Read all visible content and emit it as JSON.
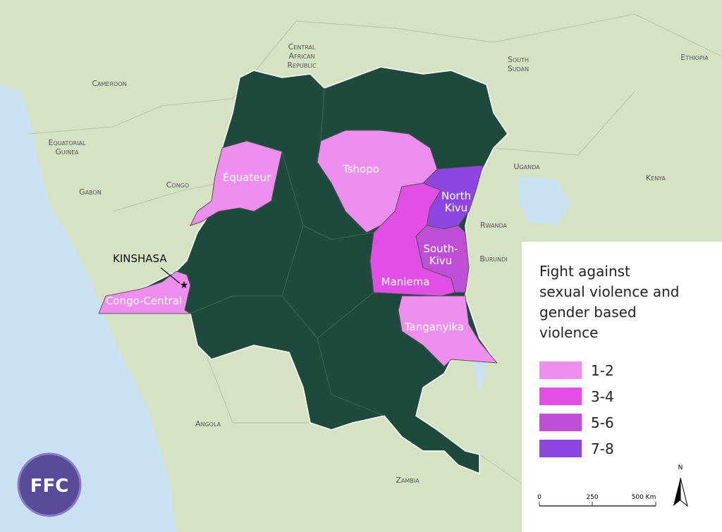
{
  "countries": [
    {
      "lines": [
        "Central",
        "African",
        "Republic"
      ]
    },
    {
      "lines": [
        "South",
        "Sudan"
      ]
    },
    {
      "lines": [
        "Ethiopia"
      ]
    },
    {
      "lines": [
        "Cameroon"
      ]
    },
    {
      "lines": [
        "Equatorial",
        "Guinea"
      ]
    },
    {
      "lines": [
        "Gabon"
      ]
    },
    {
      "lines": [
        "Congo"
      ]
    },
    {
      "lines": [
        "Uganda"
      ]
    },
    {
      "lines": [
        "Kenya"
      ]
    },
    {
      "lines": [
        "Rwanda"
      ]
    },
    {
      "lines": [
        "Burundi"
      ]
    },
    {
      "lines": [
        "Angola"
      ]
    },
    {
      "lines": [
        "Zambia"
      ]
    }
  ],
  "provinces": [
    {
      "lines": [
        "Équateur"
      ],
      "color": "#ee8eee"
    },
    {
      "lines": [
        "Tshopo"
      ],
      "color": "#ee8eee"
    },
    {
      "lines": [
        "North",
        "Kivu"
      ],
      "color": "#8f45e0"
    },
    {
      "lines": [
        "Maniema"
      ],
      "color": "#e34fe6"
    },
    {
      "lines": [
        "South-",
        "Kivu"
      ],
      "color": "#bf4fd6"
    },
    {
      "lines": [
        "Tanganyika"
      ],
      "color": "#ee8eee"
    },
    {
      "lines": [
        "Congo-Central"
      ],
      "color": "#ee8eee"
    }
  ],
  "capital": "KINSHASA",
  "legend": {
    "title_lines": [
      "Fight against",
      "sexual violence and",
      "gender based",
      "violence"
    ],
    "items": [
      {
        "label": "1-2",
        "color": "#ee8eee"
      },
      {
        "label": "3-4",
        "color": "#e34fe6"
      },
      {
        "label": "5-6",
        "color": "#bf4fd6"
      },
      {
        "label": "7-8",
        "color": "#8f45e0"
      }
    ]
  },
  "scale": {
    "labels": [
      "0",
      "250",
      "500 Km"
    ]
  },
  "north": "N",
  "logo": "FFC"
}
